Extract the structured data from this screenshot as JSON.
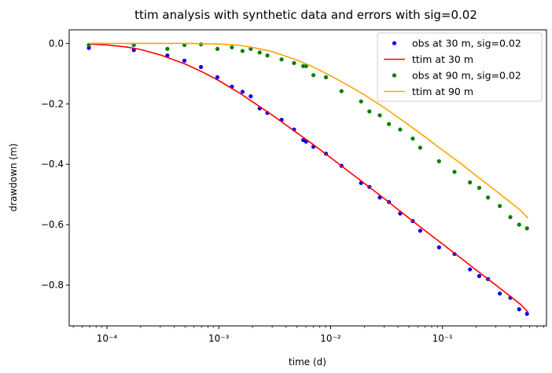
{
  "chart_data": {
    "type": "scatter",
    "title": "ttim analysis with synthetic data and errors with sig=0.02",
    "xlabel": "time (d)",
    "ylabel": "drawdown (m)",
    "xscale": "log",
    "xlim": [
      4.6e-05,
      0.85
    ],
    "ylim": [
      -0.935,
      0.045
    ],
    "x_ticks": [
      {
        "value": 0.0001,
        "label": "10⁻⁴"
      },
      {
        "value": 0.001,
        "label": "10⁻³"
      },
      {
        "value": 0.01,
        "label": "10⁻²"
      },
      {
        "value": 0.1,
        "label": "10⁻¹"
      }
    ],
    "y_ticks": [
      {
        "value": 0.0,
        "label": "0.0"
      },
      {
        "value": -0.2,
        "label": "−0.2"
      },
      {
        "value": -0.4,
        "label": "−0.4"
      },
      {
        "value": -0.6,
        "label": "−0.6"
      },
      {
        "value": -0.8,
        "label": "−0.8"
      }
    ],
    "legend_position": "top-right",
    "series": [
      {
        "name": "obs at 30 m, sig=0.02",
        "kind": "points",
        "color": "#0000ff",
        "x": [
          6.9e-05,
          0.000174,
          0.000347,
          0.000493,
          0.000693,
          0.000972,
          0.00131,
          0.00163,
          0.00193,
          0.00232,
          0.00272,
          0.00364,
          0.00471,
          0.00569,
          0.00603,
          0.00701,
          0.00907,
          0.0125,
          0.0187,
          0.0222,
          0.0275,
          0.0332,
          0.0418,
          0.0542,
          0.0632,
          0.0931,
          0.128,
          0.176,
          0.213,
          0.255,
          0.325,
          0.404,
          0.484,
          0.569
        ],
        "y": [
          -0.015,
          -0.022,
          -0.04,
          -0.057,
          -0.078,
          -0.112,
          -0.143,
          -0.16,
          -0.175,
          -0.215,
          -0.23,
          -0.253,
          -0.285,
          -0.32,
          -0.325,
          -0.342,
          -0.365,
          -0.405,
          -0.462,
          -0.475,
          -0.51,
          -0.525,
          -0.563,
          -0.588,
          -0.62,
          -0.675,
          -0.697,
          -0.748,
          -0.77,
          -0.78,
          -0.828,
          -0.842,
          -0.88,
          -0.895
        ]
      },
      {
        "name": "ttim at 30 m",
        "kind": "line",
        "color": "#ff0000",
        "x": [
          6.9e-05,
          0.0001,
          0.00015,
          0.0002,
          0.0003,
          0.0005,
          0.0007,
          0.001,
          0.0015,
          0.002,
          0.003,
          0.005,
          0.007,
          0.01,
          0.015,
          0.02,
          0.03,
          0.05,
          0.07,
          0.1,
          0.15,
          0.2,
          0.3,
          0.5,
          0.58
        ],
        "y": [
          -0.002,
          -0.005,
          -0.012,
          -0.02,
          -0.038,
          -0.068,
          -0.093,
          -0.123,
          -0.162,
          -0.193,
          -0.237,
          -0.296,
          -0.335,
          -0.378,
          -0.428,
          -0.463,
          -0.513,
          -0.578,
          -0.62,
          -0.664,
          -0.714,
          -0.75,
          -0.8,
          -0.864,
          -0.889
        ]
      },
      {
        "name": "obs at 90 m, sig=0.02",
        "kind": "points",
        "color": "#008000",
        "x": [
          6.9e-05,
          0.000174,
          0.000347,
          0.000493,
          0.000693,
          0.000972,
          0.00131,
          0.00163,
          0.00193,
          0.00232,
          0.00272,
          0.00364,
          0.00471,
          0.00569,
          0.00603,
          0.00701,
          0.00907,
          0.0125,
          0.0187,
          0.0222,
          0.0275,
          0.0332,
          0.0418,
          0.0542,
          0.0632,
          0.0931,
          0.128,
          0.176,
          0.213,
          0.255,
          0.325,
          0.404,
          0.484,
          0.569
        ],
        "y": [
          -0.005,
          -0.005,
          -0.018,
          -0.005,
          -0.003,
          -0.018,
          -0.013,
          -0.025,
          -0.018,
          -0.03,
          -0.04,
          -0.053,
          -0.065,
          -0.075,
          -0.075,
          -0.105,
          -0.112,
          -0.158,
          -0.192,
          -0.225,
          -0.238,
          -0.267,
          -0.285,
          -0.315,
          -0.345,
          -0.39,
          -0.425,
          -0.46,
          -0.478,
          -0.51,
          -0.538,
          -0.575,
          -0.6,
          -0.612
        ]
      },
      {
        "name": "ttim at 90 m",
        "kind": "line",
        "color": "#ffa500",
        "x": [
          6.9e-05,
          0.0002,
          0.0005,
          0.001,
          0.0015,
          0.002,
          0.003,
          0.005,
          0.007,
          0.01,
          0.015,
          0.02,
          0.03,
          0.05,
          0.07,
          0.1,
          0.15,
          0.2,
          0.3,
          0.5,
          0.58
        ],
        "y": [
          0.0,
          0.0,
          0.0,
          -0.002,
          -0.006,
          -0.013,
          -0.027,
          -0.055,
          -0.078,
          -0.107,
          -0.143,
          -0.17,
          -0.212,
          -0.27,
          -0.31,
          -0.353,
          -0.401,
          -0.438,
          -0.488,
          -0.553,
          -0.578
        ]
      }
    ]
  }
}
